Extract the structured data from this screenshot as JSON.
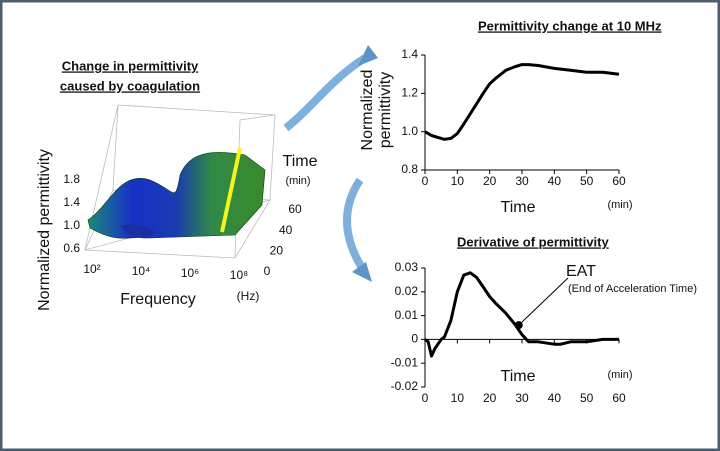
{
  "chart_data": [
    {
      "type": "surface3d",
      "title": [
        "Change in permittivity",
        "caused by coagulation"
      ],
      "zlabel": "Normalized permittivity",
      "xlabel": "Frequency",
      "xunit": "(Hz)",
      "ylabel": "Time",
      "yunit": "(min)",
      "xlog": true,
      "xticks": [
        {
          "value": 100,
          "label": "10²"
        },
        {
          "value": 10000,
          "label": "10⁴"
        },
        {
          "value": 1000000,
          "label": "10⁶"
        },
        {
          "value": 100000000,
          "label": "10⁸"
        }
      ],
      "yticks": [
        0,
        20,
        40,
        60
      ],
      "zticks": [
        {
          "value": 0.6,
          "label": "0.6"
        },
        {
          "value": 1,
          "label": "1.0"
        },
        {
          "value": 1.4,
          "label": "1.4"
        },
        {
          "value": 1.8,
          "label": "1.8"
        }
      ]
    },
    {
      "type": "line",
      "title": "Permittivity change at 10 MHz",
      "ylabel": [
        "Normalized",
        "permittivity"
      ],
      "xlabel": "Time",
      "xunit": "(min)",
      "x": [
        0,
        2,
        4,
        6,
        8,
        10,
        12,
        15,
        18,
        20,
        22,
        25,
        28,
        30,
        32,
        35,
        40,
        45,
        50,
        55,
        60
      ],
      "values": [
        1.0,
        0.98,
        0.97,
        0.96,
        0.965,
        0.99,
        1.04,
        1.12,
        1.2,
        1.25,
        1.28,
        1.32,
        1.34,
        1.35,
        1.35,
        1.345,
        1.33,
        1.32,
        1.31,
        1.31,
        1.3
      ],
      "color": "#000000",
      "xlim": [
        0,
        60
      ],
      "xticks": [
        0,
        10,
        20,
        30,
        40,
        50,
        60
      ],
      "ylim": [
        0.8,
        1.4
      ],
      "yticks": [
        {
          "value": 0.8,
          "label": "0.8"
        },
        {
          "value": 1,
          "label": "1.0"
        },
        {
          "value": 1.2,
          "label": "1.2"
        },
        {
          "value": 1.4,
          "label": "1.4"
        }
      ]
    },
    {
      "type": "line",
      "title": "Derivative of permittivity",
      "xlabel": "Time",
      "xunit": "(min)",
      "x": [
        0,
        1,
        2,
        3,
        4,
        5,
        6,
        8,
        10,
        12,
        14,
        16,
        18,
        20,
        22,
        25,
        28,
        30,
        32,
        35,
        40,
        42,
        45,
        50,
        55,
        58,
        60
      ],
      "values": [
        0,
        -0.001,
        -0.007,
        -0.004,
        -0.002,
        0,
        0.001,
        0.008,
        0.02,
        0.027,
        0.028,
        0.026,
        0.022,
        0.018,
        0.015,
        0.011,
        0.006,
        0.002,
        -0.001,
        -0.001,
        -0.002,
        -0.002,
        -0.001,
        -0.001,
        0,
        0,
        0
      ],
      "color": "#000000",
      "xlim": [
        0,
        60
      ],
      "xticks": [
        0,
        10,
        20,
        30,
        40,
        50,
        60
      ],
      "ylim": [
        -0.02,
        0.03
      ],
      "yticks": [
        -0.02,
        -0.01,
        0,
        0.01,
        0.02,
        0.03
      ],
      "annotation": {
        "text": "EAT",
        "subtext": "(End of Acceleration Time)",
        "x": 29,
        "y": 0.006
      }
    }
  ]
}
